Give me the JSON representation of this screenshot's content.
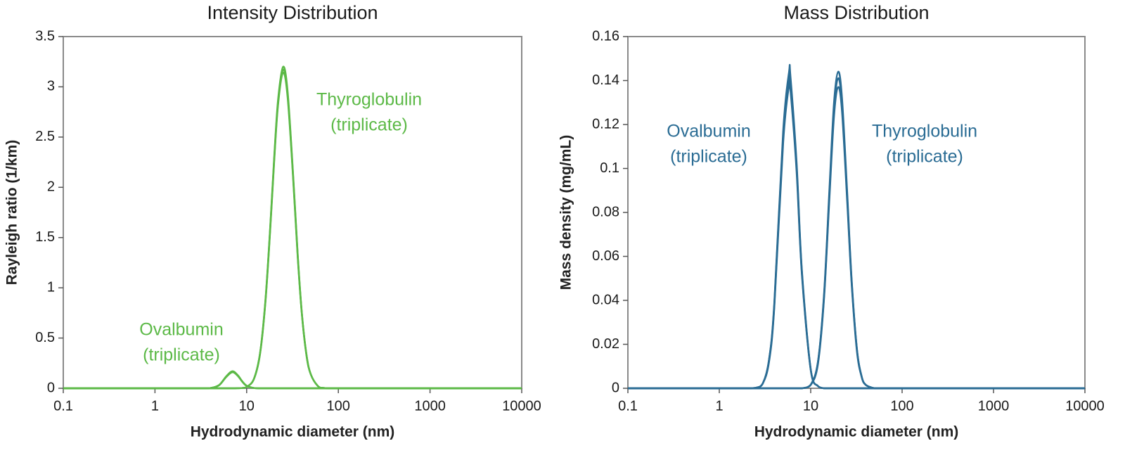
{
  "chart_data": [
    {
      "type": "line",
      "title": "Intensity Distribution",
      "x_label": "Hydrodynamic diameter (nm)",
      "y_label": "Rayleigh ratio (1/km)",
      "x_scale": "log",
      "xlim": [
        0.1,
        10000
      ],
      "xticks": [
        0.1,
        1,
        10,
        100,
        1000,
        10000
      ],
      "ylim": [
        0,
        3.5
      ],
      "yticks": [
        0,
        0.5,
        1,
        1.5,
        2,
        2.5,
        3,
        3.5
      ],
      "grid": false,
      "annotations": [
        [
          "Thyroglobulin",
          "(triplicate)"
        ],
        [
          "Ovalbumin",
          "(triplicate)"
        ]
      ],
      "x": [
        0.1,
        1,
        3,
        4,
        5,
        6,
        7,
        8,
        9,
        10,
        12,
        14,
        16,
        18,
        20,
        22,
        25,
        28,
        32,
        36,
        40,
        45,
        50,
        60,
        70,
        100,
        1000,
        10000
      ],
      "series": [
        {
          "color": "#5cb947",
          "values": [
            0,
            0,
            0,
            0,
            0,
            0,
            0,
            0.0006,
            0.003,
            0.013,
            0.094,
            0.35,
            0.87,
            1.58,
            2.31,
            2.87,
            3.2,
            2.95,
            2.15,
            1.34,
            0.75,
            0.33,
            0.14,
            0.021,
            0.003,
            0,
            0,
            0
          ]
        },
        {
          "color": "#5cb947",
          "values": [
            0,
            0,
            0,
            0,
            0,
            0,
            0,
            0.0006,
            0.003,
            0.013,
            0.093,
            0.35,
            0.86,
            1.57,
            2.29,
            2.84,
            3.17,
            2.92,
            2.13,
            1.33,
            0.74,
            0.33,
            0.14,
            0.021,
            0.003,
            0,
            0,
            0
          ]
        },
        {
          "color": "#5cb947",
          "values": [
            0,
            0,
            0,
            0,
            0,
            0,
            0,
            0.0006,
            0.003,
            0.013,
            0.092,
            0.34,
            0.85,
            1.55,
            2.27,
            2.82,
            3.14,
            2.89,
            2.11,
            1.31,
            0.74,
            0.32,
            0.14,
            0.021,
            0.003,
            0,
            0,
            0
          ]
        },
        {
          "color": "#5cb947",
          "values": [
            0,
            0,
            0,
            0.0017,
            0.032,
            0.12,
            0.17,
            0.13,
            0.067,
            0.026,
            0.0024,
            0,
            0,
            0,
            0,
            0,
            0,
            0,
            0,
            0,
            0,
            0,
            0,
            0,
            0,
            0,
            0,
            0
          ]
        },
        {
          "color": "#5cb947",
          "values": [
            0,
            0,
            0,
            0.0016,
            0.031,
            0.116,
            0.165,
            0.127,
            0.065,
            0.025,
            0.0023,
            0,
            0,
            0,
            0,
            0,
            0,
            0,
            0,
            0,
            0,
            0,
            0,
            0,
            0,
            0,
            0,
            0
          ]
        },
        {
          "color": "#5cb947",
          "values": [
            0,
            0,
            0,
            0.0016,
            0.03,
            0.113,
            0.16,
            0.123,
            0.063,
            0.024,
            0.0022,
            0,
            0,
            0,
            0,
            0,
            0,
            0,
            0,
            0,
            0,
            0,
            0,
            0,
            0,
            0,
            0,
            0
          ]
        }
      ]
    },
    {
      "type": "line",
      "title": "Mass Distribution",
      "x_label": "Hydrodynamic diameter (nm)",
      "y_label": "Mass density (mg/mL)",
      "x_scale": "log",
      "xlim": [
        0.1,
        10000
      ],
      "xticks": [
        0.1,
        1,
        10,
        100,
        1000,
        10000
      ],
      "ylim": [
        0,
        0.16
      ],
      "yticks": [
        0,
        0.02,
        0.04,
        0.06,
        0.08,
        0.1,
        0.12,
        0.14,
        0.16
      ],
      "grid": false,
      "annotations": [
        [
          "Ovalbumin",
          "(triplicate)"
        ],
        [
          "Thyroglobulin",
          "(triplicate)"
        ]
      ],
      "x": [
        0.1,
        1,
        2,
        2.5,
        3,
        3.5,
        4,
        5,
        5.8,
        6,
        7,
        8,
        10,
        12,
        14,
        16,
        18,
        20,
        22,
        25,
        28,
        32,
        36,
        40,
        50,
        60,
        100,
        1000,
        10000
      ],
      "series": [
        {
          "color": "#2a6c94",
          "values": [
            0,
            0,
            0,
            0.0002,
            0.0024,
            0.013,
            0.039,
            0.117,
            0.144,
            0.142,
            0.103,
            0.054,
            0.0088,
            0.001,
            0,
            0,
            0,
            0,
            0,
            0,
            0,
            0,
            0,
            0,
            0,
            0,
            0,
            0,
            0
          ]
        },
        {
          "color": "#2a6c94",
          "values": [
            0,
            0,
            0,
            0.0002,
            0.0023,
            0.013,
            0.038,
            0.115,
            0.141,
            0.139,
            0.101,
            0.053,
            0.0086,
            0.001,
            0,
            0,
            0,
            0,
            0,
            0,
            0,
            0,
            0,
            0,
            0,
            0,
            0,
            0,
            0
          ]
        },
        {
          "color": "#2a6c94",
          "values": [
            0,
            0,
            0,
            0.0002,
            0.0023,
            0.012,
            0.037,
            0.112,
            0.138,
            0.136,
            0.099,
            0.052,
            0.0084,
            0.001,
            0,
            0,
            0,
            0,
            0,
            0,
            0,
            0,
            0,
            0,
            0,
            0,
            0,
            0,
            0
          ]
        },
        {
          "color": "#2a6c94",
          "values": [
            0,
            0,
            0,
            0,
            0,
            0,
            0,
            0,
            0,
            0,
            0,
            0,
            0.0016,
            0.012,
            0.043,
            0.09,
            0.13,
            0.144,
            0.132,
            0.09,
            0.05,
            0.018,
            0.0056,
            0.0016,
            0,
            0,
            0,
            0,
            0
          ]
        },
        {
          "color": "#2a6c94",
          "values": [
            0,
            0,
            0,
            0,
            0,
            0,
            0,
            0,
            0,
            0,
            0,
            0,
            0.0016,
            0.012,
            0.042,
            0.088,
            0.127,
            0.141,
            0.129,
            0.088,
            0.049,
            0.018,
            0.0055,
            0.0016,
            0,
            0,
            0,
            0,
            0
          ]
        },
        {
          "color": "#2a6c94",
          "values": [
            0,
            0,
            0,
            0,
            0,
            0,
            0,
            0,
            0,
            0,
            0,
            0,
            0.0015,
            0.011,
            0.041,
            0.086,
            0.124,
            0.137,
            0.126,
            0.086,
            0.048,
            0.017,
            0.0053,
            0.0015,
            0,
            0,
            0,
            0,
            0
          ]
        }
      ]
    }
  ]
}
